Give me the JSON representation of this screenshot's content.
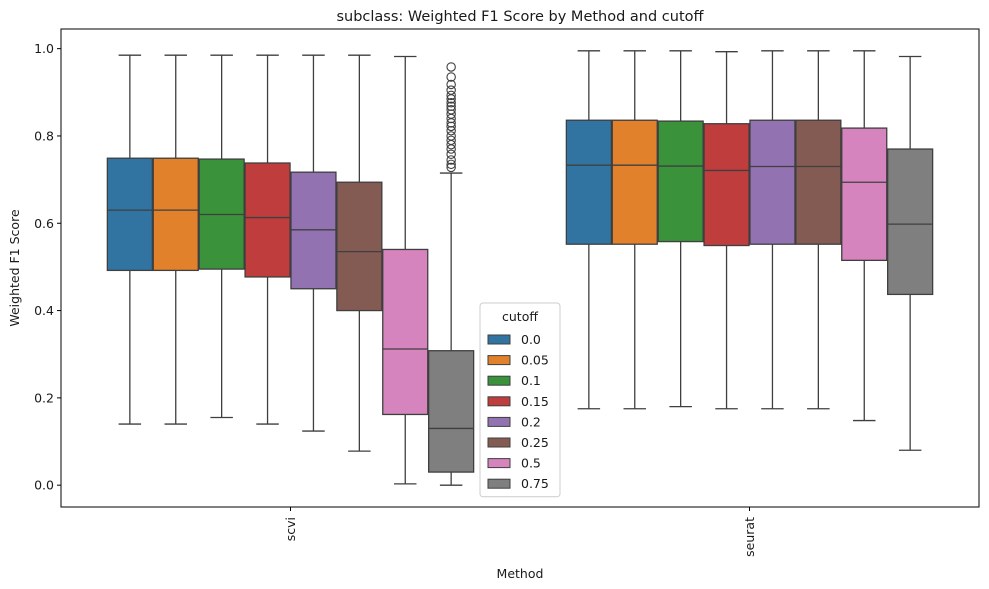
{
  "chart_data": {
    "type": "boxplot",
    "title": "subclass: Weighted F1 Score by Method and cutoff",
    "xlabel": "Method",
    "ylabel": "Weighted F1 Score",
    "categories": [
      "scvi",
      "seurat"
    ],
    "ylim": [
      -0.05,
      1.045
    ],
    "yticks": [
      "0.0",
      "0.2",
      "0.4",
      "0.6",
      "0.8",
      "1.0"
    ],
    "grid": false,
    "legend": {
      "title": "cutoff",
      "placement": "lower center"
    },
    "series": [
      {
        "name": "0.0",
        "color": "#3274a1",
        "boxes": [
          {
            "min": 0.14,
            "q1": 0.492,
            "median": 0.63,
            "q3": 0.749,
            "max": 0.985,
            "outliers": []
          },
          {
            "min": 0.175,
            "q1": 0.552,
            "median": 0.733,
            "q3": 0.836,
            "max": 0.995,
            "outliers": []
          }
        ]
      },
      {
        "name": "0.05",
        "color": "#e1812c",
        "boxes": [
          {
            "min": 0.14,
            "q1": 0.492,
            "median": 0.63,
            "q3": 0.749,
            "max": 0.985,
            "outliers": []
          },
          {
            "min": 0.175,
            "q1": 0.552,
            "median": 0.733,
            "q3": 0.836,
            "max": 0.995,
            "outliers": []
          }
        ]
      },
      {
        "name": "0.1",
        "color": "#3a923a",
        "boxes": [
          {
            "min": 0.155,
            "q1": 0.495,
            "median": 0.62,
            "q3": 0.747,
            "max": 0.985,
            "outliers": []
          },
          {
            "min": 0.18,
            "q1": 0.558,
            "median": 0.731,
            "q3": 0.834,
            "max": 0.995,
            "outliers": []
          }
        ]
      },
      {
        "name": "0.15",
        "color": "#c03d3e",
        "boxes": [
          {
            "min": 0.14,
            "q1": 0.477,
            "median": 0.613,
            "q3": 0.738,
            "max": 0.985,
            "outliers": []
          },
          {
            "min": 0.175,
            "q1": 0.549,
            "median": 0.721,
            "q3": 0.828,
            "max": 0.993,
            "outliers": []
          }
        ]
      },
      {
        "name": "0.2",
        "color": "#9372b2",
        "boxes": [
          {
            "min": 0.124,
            "q1": 0.45,
            "median": 0.585,
            "q3": 0.717,
            "max": 0.985,
            "outliers": []
          },
          {
            "min": 0.175,
            "q1": 0.552,
            "median": 0.73,
            "q3": 0.836,
            "max": 0.995,
            "outliers": []
          }
        ]
      },
      {
        "name": "0.25",
        "color": "#845b53",
        "boxes": [
          {
            "min": 0.078,
            "q1": 0.4,
            "median": 0.535,
            "q3": 0.694,
            "max": 0.985,
            "outliers": []
          },
          {
            "min": 0.175,
            "q1": 0.552,
            "median": 0.73,
            "q3": 0.836,
            "max": 0.995,
            "outliers": []
          }
        ]
      },
      {
        "name": "0.5",
        "color": "#d684bd",
        "boxes": [
          {
            "min": 0.003,
            "q1": 0.162,
            "median": 0.312,
            "q3": 0.54,
            "max": 0.982,
            "outliers": []
          },
          {
            "min": 0.148,
            "q1": 0.515,
            "median": 0.694,
            "q3": 0.818,
            "max": 0.995,
            "outliers": []
          }
        ]
      },
      {
        "name": "0.75",
        "color": "#7f7f7f",
        "boxes": [
          {
            "min": 0.0,
            "q1": 0.03,
            "median": 0.13,
            "q3": 0.308,
            "max": 0.715,
            "outliers": [
              0.728,
              0.735,
              0.745,
              0.758,
              0.77,
              0.78,
              0.79,
              0.8,
              0.812,
              0.822,
              0.83,
              0.84,
              0.85,
              0.86,
              0.868,
              0.876,
              0.885,
              0.893,
              0.905,
              0.918,
              0.935,
              0.958
            ]
          },
          {
            "min": 0.08,
            "q1": 0.437,
            "median": 0.598,
            "q3": 0.77,
            "max": 0.982,
            "outliers": []
          }
        ]
      }
    ]
  }
}
